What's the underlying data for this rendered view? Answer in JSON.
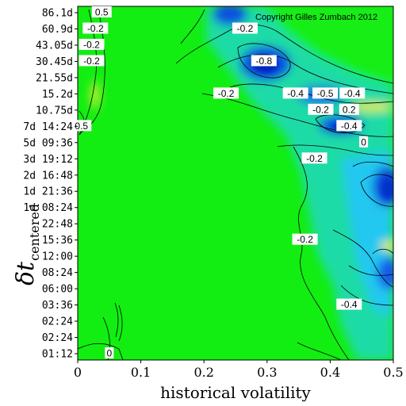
{
  "chart_data": {
    "type": "heatmap",
    "title": "",
    "xlabel": "historical volatility",
    "ylabel_symbol": "δt",
    "ylabel_subscript": "centered",
    "xlim": [
      0,
      0.5
    ],
    "x_ticks": [
      "0",
      "0.1",
      "0.2",
      "0.3",
      "0.4",
      "0.5"
    ],
    "y_ticks": [
      "86.1d",
      "60.9d",
      "43.05d",
      "30.45d",
      "21.55d",
      "15.2d",
      "10.75d",
      "7d 14:24",
      "5d 09:36",
      "3d 19:12",
      "2d 16:48",
      "1d 21:36",
      "1d 08:24",
      "22:48",
      "15:36",
      "12:00",
      "08:24",
      "06:00",
      "03:36",
      "02:24",
      "02:24",
      "01:12"
    ],
    "contour_labels": [
      {
        "text": "-0.2",
        "x": 0.265,
        "y_tick": "60.9d"
      },
      {
        "text": "-0.8",
        "x": 0.295,
        "y_tick": "30.45d"
      },
      {
        "text": "-0.2",
        "x": 0.235,
        "y_tick": "15.2d"
      },
      {
        "text": "-0.4",
        "x": 0.345,
        "y_tick": "15.2d"
      },
      {
        "text": "-0.5",
        "x": 0.392,
        "y_tick": "15.2d"
      },
      {
        "text": "-0.2",
        "x": 0.385,
        "y_tick": "10.75d"
      },
      {
        "text": "-0.4",
        "x": 0.435,
        "y_tick": "15.2d"
      },
      {
        "text": "0.2",
        "x": 0.43,
        "y_tick": "10.75d"
      },
      {
        "text": "-0.4",
        "x": 0.43,
        "y_tick": "7d 14:24"
      },
      {
        "text": "-0.2",
        "x": 0.375,
        "y_tick": "3d 19:12"
      },
      {
        "text": "0",
        "x": 0.453,
        "y_tick": "5d 09:36"
      },
      {
        "text": "-0.2",
        "x": 0.36,
        "y_tick": "15:36"
      },
      {
        "text": "-0.4",
        "x": 0.43,
        "y_tick": "03:36"
      },
      {
        "text": "-0.2",
        "x": 0.022,
        "y_tick": "43.05d"
      },
      {
        "text": "-0.2",
        "x": 0.022,
        "y_tick": "30.45d"
      },
      {
        "text": "-0.2",
        "x": 0.028,
        "y_tick": "60.9d"
      },
      {
        "text": "0.5",
        "x": 0.006,
        "y_tick": "7d 14:24"
      },
      {
        "text": "0",
        "x": 0.05,
        "y_tick": "01:12"
      },
      {
        "text": "0.5",
        "x": 0.038,
        "y_tick": "86.1d"
      }
    ],
    "colors": {
      "zero": "#11f011",
      "negative": "#1044dd",
      "mid_negative": "#20c8f0",
      "positive": "#f8f000"
    }
  },
  "annotation": "Copyright Gilles Zumbach 2012"
}
